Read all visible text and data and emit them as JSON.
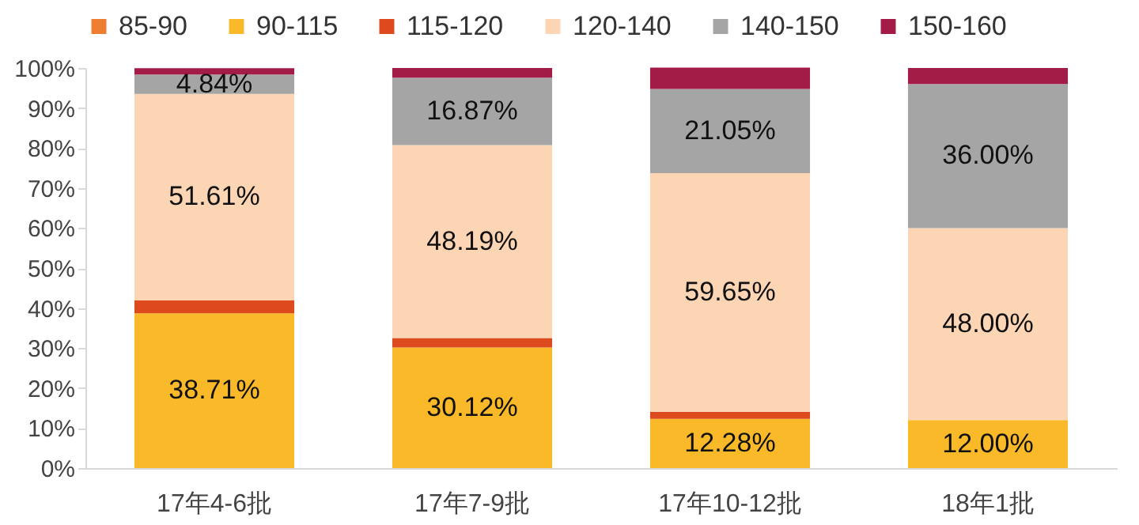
{
  "chart_data": {
    "type": "bar",
    "stacked": true,
    "categories": [
      "17年4-6批",
      "17年7-9批",
      "17年10-12批",
      "18年1批"
    ],
    "series": [
      {
        "name": "85-90",
        "color": "#ed7d31",
        "values": [
          0,
          0,
          0,
          0
        ],
        "value_labels": [
          null,
          null,
          null,
          null
        ]
      },
      {
        "name": "90-115",
        "color": "#f9b928",
        "values": [
          38.71,
          30.12,
          12.28,
          12.0
        ],
        "value_labels": [
          "38.71%",
          "30.12%",
          "12.28%",
          "12.00%"
        ]
      },
      {
        "name": "115-120",
        "color": "#dd4a1e",
        "values": [
          3.2,
          2.4,
          1.8,
          0
        ],
        "value_labels": [
          null,
          null,
          null,
          null
        ]
      },
      {
        "name": "120-140",
        "color": "#fcd5b5",
        "values": [
          51.61,
          48.19,
          59.65,
          48.0
        ],
        "value_labels": [
          "51.61%",
          "48.19%",
          "59.65%",
          "48.00%"
        ]
      },
      {
        "name": "140-150",
        "color": "#a5a5a5",
        "values": [
          4.84,
          16.87,
          21.05,
          36.0
        ],
        "value_labels": [
          "4.84%",
          "16.87%",
          "21.05%",
          "36.00%"
        ]
      },
      {
        "name": "150-160",
        "color": "#a31b47",
        "values": [
          1.6,
          2.4,
          5.3,
          4.0
        ],
        "value_labels": [
          null,
          null,
          null,
          null
        ]
      }
    ],
    "ylim": [
      0,
      100
    ],
    "yticks": [
      {
        "value": 0,
        "label": "0%"
      },
      {
        "value": 10,
        "label": "10%"
      },
      {
        "value": 20,
        "label": "20%"
      },
      {
        "value": 30,
        "label": "30%"
      },
      {
        "value": 40,
        "label": "40%"
      },
      {
        "value": 50,
        "label": "50%"
      },
      {
        "value": 60,
        "label": "60%"
      },
      {
        "value": 70,
        "label": "70%"
      },
      {
        "value": 80,
        "label": "80%"
      },
      {
        "value": 90,
        "label": "90%"
      },
      {
        "value": 100,
        "label": "100%"
      }
    ],
    "legend": "top",
    "grid": false
  }
}
